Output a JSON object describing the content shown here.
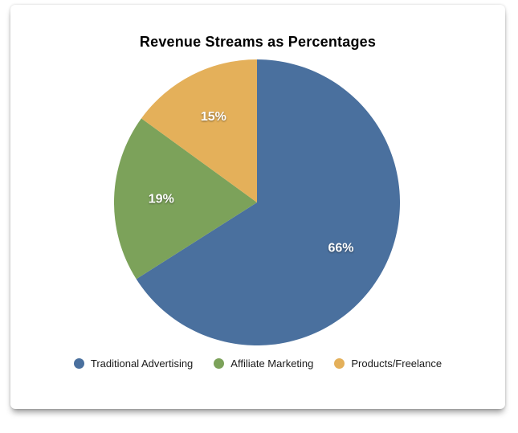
{
  "card": {
    "background": "#ffffff"
  },
  "chart_data": {
    "type": "pie",
    "title": "Revenue Streams as Percentages",
    "start_angle_deg": 0,
    "direction": "clockwise",
    "legend_position": "bottom",
    "value_label_color": "#ffffff",
    "slices": [
      {
        "label": "Traditional Advertising",
        "value": 66,
        "display": "66%",
        "color": "#4A709E"
      },
      {
        "label": "Affiliate Marketing",
        "value": 19,
        "display": "19%",
        "color": "#7CA25A"
      },
      {
        "label": "Products/Freelance",
        "value": 15,
        "display": "15%",
        "color": "#E4B05A"
      }
    ]
  }
}
